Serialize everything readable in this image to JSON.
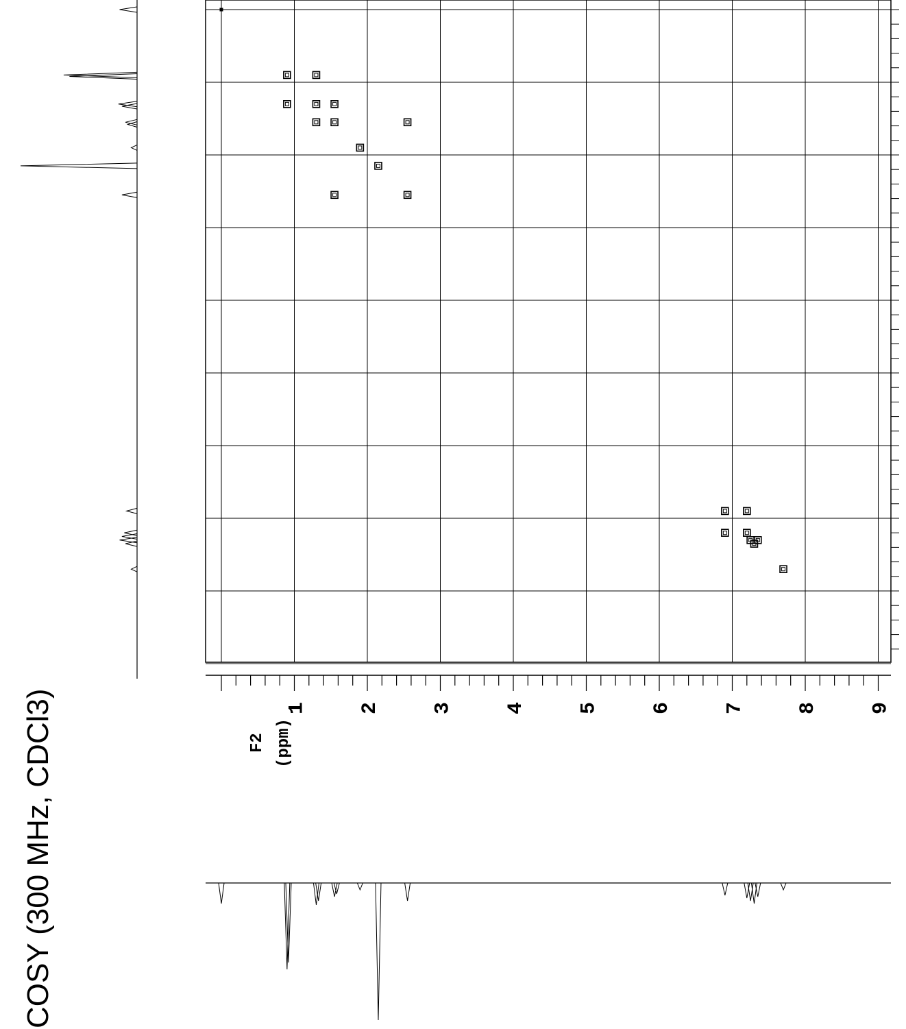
{
  "title": "COSY (300 MHz, CDCl3)",
  "chart_data": {
    "type": "heatmap",
    "subtype": "2D NMR COSY contour plot",
    "title": "COSY (300 MHz, CDCl3)",
    "xlabel": "F2",
    "xunit": "(ppm)",
    "f2_range": [
      0.0,
      9.15
    ],
    "f1_range": [
      0.0,
      9.05
    ],
    "grid": true,
    "tick_labels": [
      "1",
      "2",
      "3",
      "4",
      "5",
      "6",
      "7",
      "8",
      "9"
    ],
    "cross_peaks": [
      {
        "f2": 0.0,
        "f1": 0.0
      },
      {
        "f2": 0.9,
        "f1": 0.9
      },
      {
        "f2": 1.3,
        "f1": 0.9
      },
      {
        "f2": 0.9,
        "f1": 1.3
      },
      {
        "f2": 1.3,
        "f1": 1.3
      },
      {
        "f2": 1.55,
        "f1": 1.3
      },
      {
        "f2": 1.3,
        "f1": 1.55
      },
      {
        "f2": 1.55,
        "f1": 1.55
      },
      {
        "f2": 2.55,
        "f1": 1.55
      },
      {
        "f2": 1.9,
        "f1": 1.9
      },
      {
        "f2": 2.15,
        "f1": 2.15
      },
      {
        "f2": 1.55,
        "f1": 2.55
      },
      {
        "f2": 2.55,
        "f1": 2.55
      },
      {
        "f2": 6.9,
        "f1": 6.9
      },
      {
        "f2": 7.2,
        "f1": 6.9
      },
      {
        "f2": 6.9,
        "f1": 7.2
      },
      {
        "f2": 7.2,
        "f1": 7.2
      },
      {
        "f2": 7.25,
        "f1": 7.3
      },
      {
        "f2": 7.3,
        "f1": 7.35
      },
      {
        "f2": 7.35,
        "f1": 7.3
      },
      {
        "f2": 7.7,
        "f1": 7.7
      }
    ],
    "projection_1d_peaks_ppm": [
      0.0,
      0.9,
      0.92,
      1.3,
      1.33,
      1.55,
      1.58,
      1.9,
      2.15,
      2.55,
      6.9,
      7.2,
      7.25,
      7.3,
      7.35,
      7.7
    ],
    "projection_1d_intensity": [
      0.15,
      0.63,
      0.58,
      0.16,
      0.13,
      0.1,
      0.08,
      0.05,
      1.0,
      0.13,
      0.09,
      0.11,
      0.13,
      0.15,
      0.1,
      0.05
    ]
  }
}
